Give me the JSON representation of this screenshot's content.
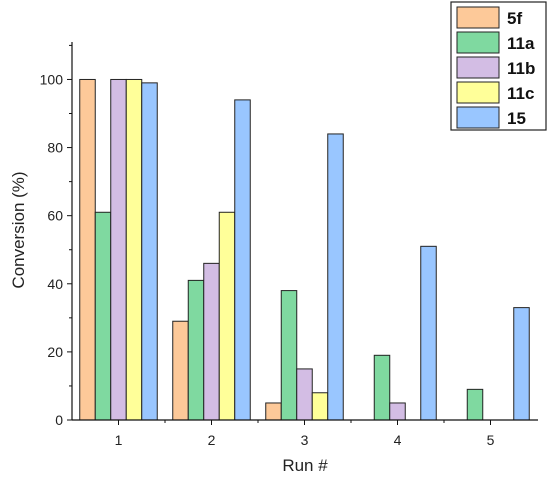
{
  "chart_data": {
    "type": "bar",
    "title": "",
    "xlabel": "Run #",
    "ylabel": "Conversion (%)",
    "categories": [
      "1",
      "2",
      "3",
      "4",
      "5"
    ],
    "ylim": [
      0,
      111
    ],
    "yticks": [
      "0",
      "20",
      "40",
      "60",
      "80",
      "100"
    ],
    "grid": false,
    "legend_position": "top-right",
    "series": [
      {
        "name": "5f",
        "color": "#fdc999",
        "values": [
          100,
          29,
          5,
          0,
          0
        ]
      },
      {
        "name": "11a",
        "color": "#7fd9a0",
        "values": [
          61,
          41,
          38,
          19,
          9
        ]
      },
      {
        "name": "11b",
        "color": "#d3bde4",
        "values": [
          100,
          46,
          15,
          5,
          0
        ]
      },
      {
        "name": "11c",
        "color": "#ffff99",
        "values": [
          100,
          61,
          8,
          0,
          0
        ]
      },
      {
        "name": "15",
        "color": "#99c6ff",
        "values": [
          99,
          94,
          84,
          51,
          33
        ]
      }
    ]
  }
}
